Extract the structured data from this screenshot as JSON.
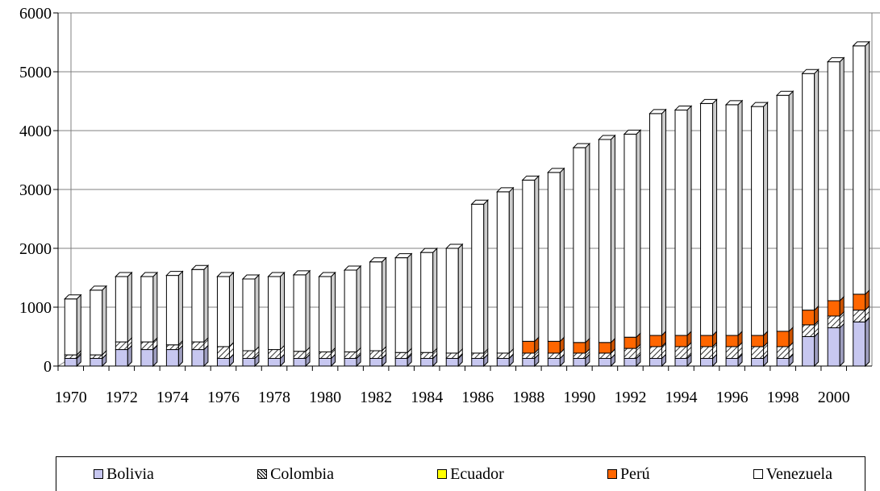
{
  "chart_data": {
    "type": "bar",
    "stacked": true,
    "three_d": true,
    "title": "",
    "xlabel": "",
    "ylabel": "",
    "ylim": [
      0,
      6000
    ],
    "y_ticks": [
      0,
      1000,
      2000,
      3000,
      4000,
      5000,
      6000
    ],
    "grid": true,
    "legend_position": "bottom",
    "categories": [
      "1970",
      "1971",
      "1972",
      "1973",
      "1974",
      "1975",
      "1976",
      "1977",
      "1978",
      "1979",
      "1980",
      "1981",
      "1982",
      "1983",
      "1984",
      "1985",
      "1986",
      "1987",
      "1988",
      "1989",
      "1990",
      "1991",
      "1992",
      "1993",
      "1994",
      "1995",
      "1996",
      "1997",
      "1998",
      "1999",
      "2000",
      "2001"
    ],
    "x_tick_labels": [
      "1970",
      "1972",
      "1974",
      "1976",
      "1978",
      "1980",
      "1982",
      "1984",
      "1986",
      "1988",
      "1990",
      "1992",
      "1994",
      "1996",
      "1998",
      "2000"
    ],
    "series": [
      {
        "name": "Bolivia",
        "color": "#c7c7f0",
        "pattern": "solid",
        "values": [
          130,
          130,
          280,
          280,
          280,
          280,
          130,
          130,
          130,
          130,
          130,
          130,
          130,
          130,
          130,
          130,
          130,
          130,
          130,
          130,
          130,
          130,
          130,
          130,
          130,
          130,
          130,
          130,
          130,
          500,
          650,
          750
        ]
      },
      {
        "name": "Colombia",
        "color": "#ffffff",
        "pattern": "hatch",
        "values": [
          60,
          60,
          130,
          130,
          80,
          130,
          200,
          130,
          150,
          120,
          110,
          110,
          130,
          100,
          100,
          90,
          90,
          90,
          90,
          90,
          90,
          90,
          170,
          200,
          200,
          200,
          200,
          200,
          200,
          200,
          200,
          200
        ]
      },
      {
        "name": "Ecuador",
        "color": "#ffff00",
        "pattern": "solid",
        "values": [
          0,
          0,
          0,
          0,
          0,
          0,
          0,
          0,
          0,
          0,
          0,
          0,
          0,
          0,
          0,
          0,
          0,
          0,
          0,
          0,
          0,
          0,
          0,
          0,
          0,
          0,
          0,
          0,
          0,
          0,
          0,
          0
        ]
      },
      {
        "name": "Perú",
        "color": "#ff6600",
        "pattern": "solid",
        "values": [
          0,
          0,
          0,
          0,
          0,
          0,
          0,
          0,
          0,
          0,
          0,
          0,
          0,
          0,
          0,
          0,
          0,
          0,
          200,
          200,
          180,
          180,
          190,
          190,
          190,
          190,
          190,
          190,
          260,
          250,
          260,
          270
        ]
      },
      {
        "name": "Venezuela",
        "color": "#ffffff",
        "pattern": "solid",
        "values": [
          950,
          1100,
          1110,
          1110,
          1180,
          1230,
          1190,
          1220,
          1240,
          1300,
          1280,
          1390,
          1510,
          1610,
          1700,
          1780,
          2530,
          2740,
          2740,
          2870,
          3310,
          3450,
          3450,
          3770,
          3830,
          3940,
          3920,
          3890,
          4010,
          4020,
          4060,
          4220
        ]
      }
    ]
  }
}
